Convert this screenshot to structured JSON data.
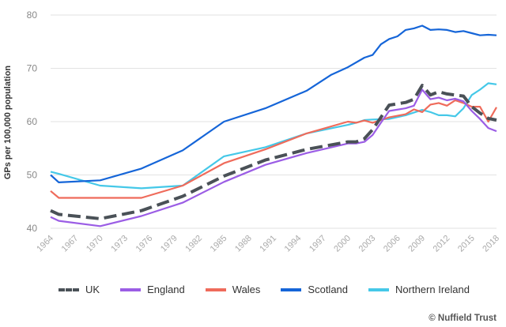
{
  "chart_data": {
    "type": "line",
    "title": "",
    "xlabel": "",
    "ylabel": "GPs per 100,000 population",
    "xlim": [
      1964,
      2018
    ],
    "ylim": [
      40,
      80
    ],
    "yticks": [
      40,
      50,
      60,
      70,
      80
    ],
    "xticks": [
      1964,
      1967,
      1970,
      1973,
      1976,
      1979,
      1982,
      1985,
      1988,
      1991,
      1994,
      1997,
      2000,
      2003,
      2006,
      2009,
      2012,
      2015,
      2018
    ],
    "grid": true,
    "legend_position": "bottom",
    "series": [
      {
        "name": "UK",
        "color": "#4a5157",
        "dashed": true,
        "x": [
          1964,
          1965,
          1970,
          1975,
          1980,
          1985,
          1990,
          1995,
          2000,
          2001,
          2002,
          2003,
          2004,
          2005,
          2007,
          2008,
          2009,
          2010,
          2011,
          2012,
          2013,
          2014,
          2015,
          2016,
          2017,
          2018
        ],
        "y": [
          43.3,
          42.6,
          41.8,
          43.3,
          46.0,
          49.8,
          52.8,
          54.8,
          56.2,
          56.2,
          56.8,
          58.5,
          60.8,
          63.1,
          63.6,
          64.2,
          66.8,
          65.0,
          65.6,
          65.2,
          65.0,
          64.8,
          62.8,
          61.6,
          60.6,
          60.3
        ]
      },
      {
        "name": "England",
        "color": "#9b5de5",
        "dashed": false,
        "x": [
          1964,
          1965,
          1970,
          1975,
          1980,
          1985,
          1990,
          1995,
          2000,
          2001,
          2002,
          2003,
          2004,
          2005,
          2007,
          2008,
          2009,
          2010,
          2011,
          2012,
          2013,
          2014,
          2015,
          2016,
          2017,
          2018
        ],
        "y": [
          42.1,
          41.4,
          40.4,
          42.3,
          44.8,
          48.7,
          51.9,
          54.1,
          55.9,
          55.9,
          56.2,
          57.5,
          59.8,
          62.0,
          62.5,
          63.0,
          66.0,
          64.2,
          64.5,
          64.0,
          64.3,
          63.8,
          62.0,
          60.5,
          58.8,
          58.2
        ]
      },
      {
        "name": "Wales",
        "color": "#ef6b5b",
        "dashed": false,
        "x": [
          1964,
          1965,
          1970,
          1975,
          1980,
          1985,
          1990,
          1995,
          2000,
          2001,
          2002,
          2003,
          2005,
          2007,
          2008,
          2009,
          2010,
          2011,
          2012,
          2013,
          2014,
          2015,
          2016,
          2017,
          2018
        ],
        "y": [
          47.0,
          45.7,
          45.7,
          45.7,
          48.0,
          52.2,
          54.8,
          57.8,
          60.0,
          59.8,
          60.2,
          59.8,
          60.8,
          61.4,
          62.3,
          61.8,
          63.2,
          63.5,
          63.0,
          64.0,
          63.5,
          62.8,
          62.8,
          60.0,
          62.7
        ]
      },
      {
        "name": "Scotland",
        "color": "#1565d8",
        "dashed": false,
        "x": [
          1964,
          1965,
          1970,
          1975,
          1980,
          1985,
          1990,
          1995,
          1998,
          2000,
          2002,
          2003,
          2004,
          2005,
          2006,
          2007,
          2008,
          2009,
          2010,
          2011,
          2012,
          2013,
          2014,
          2015,
          2016,
          2017,
          2018
        ],
        "y": [
          50.0,
          48.6,
          49.0,
          51.2,
          54.6,
          60.0,
          62.5,
          65.8,
          68.8,
          70.2,
          72.0,
          72.5,
          74.5,
          75.5,
          76.0,
          77.2,
          77.5,
          78.0,
          77.2,
          77.3,
          77.2,
          76.8,
          77.0,
          76.6,
          76.2,
          76.3,
          76.2
        ]
      },
      {
        "name": "Northern Ireland",
        "color": "#45c8e8",
        "dashed": false,
        "x": [
          1964,
          1965,
          1970,
          1975,
          1980,
          1985,
          1990,
          1995,
          2000,
          2001,
          2002,
          2003,
          2005,
          2007,
          2009,
          2010,
          2011,
          2012,
          2013,
          2014,
          2015,
          2016,
          2017,
          2018
        ],
        "y": [
          50.6,
          50.2,
          48.0,
          47.5,
          48.0,
          53.5,
          55.2,
          57.8,
          59.4,
          59.8,
          60.3,
          60.4,
          60.5,
          61.2,
          62.2,
          61.8,
          61.2,
          61.2,
          61.0,
          62.5,
          65.0,
          66.0,
          67.2,
          67.0
        ]
      }
    ]
  },
  "credit": "© Nuffield Trust"
}
